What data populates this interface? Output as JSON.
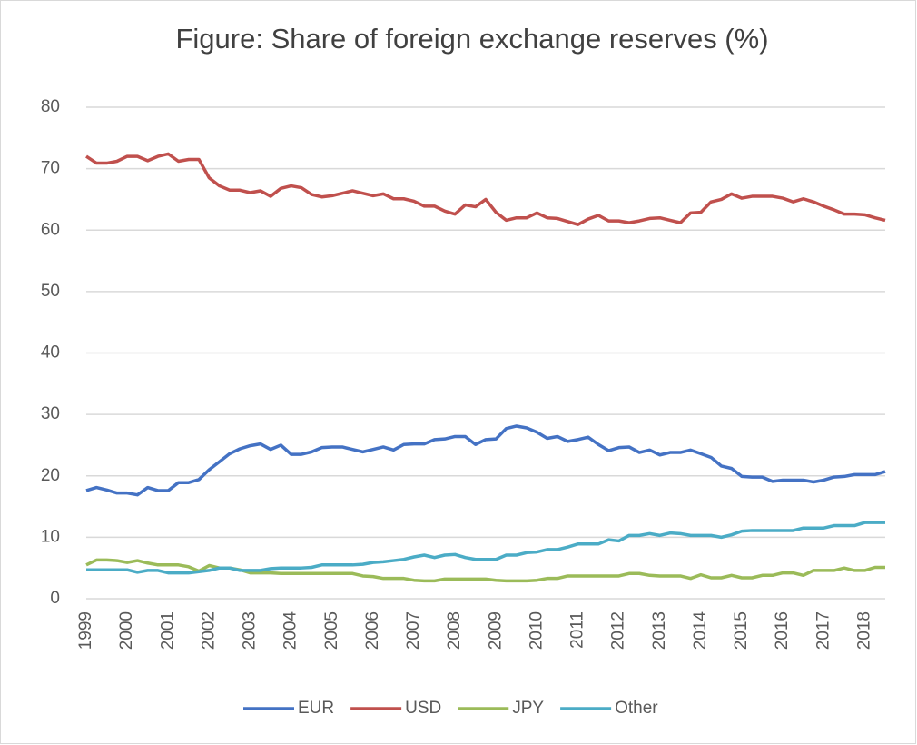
{
  "chart_data": {
    "type": "line",
    "title": "Figure: Share of foreign exchange reserves (%)",
    "categories": [
      "1999",
      null,
      null,
      null,
      "2000",
      null,
      null,
      null,
      "2001",
      null,
      null,
      null,
      "2002",
      null,
      null,
      null,
      "2003",
      null,
      null,
      null,
      "2004",
      null,
      null,
      null,
      "2005",
      null,
      null,
      null,
      "2006",
      null,
      null,
      null,
      "2007",
      null,
      null,
      null,
      "2008",
      null,
      null,
      null,
      "2009",
      null,
      null,
      null,
      "2010",
      null,
      null,
      null,
      "2011",
      null,
      null,
      null,
      "2012",
      null,
      null,
      null,
      "2013",
      null,
      null,
      null,
      "2014",
      null,
      null,
      null,
      "2015",
      null,
      null,
      null,
      "2016",
      null,
      null,
      null,
      "2017",
      null,
      null,
      null,
      "2018",
      null,
      null
    ],
    "series": [
      {
        "name": "EUR",
        "color": "#4472c4",
        "values": [
          17.6,
          18.1,
          17.7,
          17.2,
          17.2,
          16.9,
          18.1,
          17.6,
          17.6,
          18.9,
          18.9,
          19.4,
          21,
          22.3,
          23.6,
          24.4,
          24.9,
          25.2,
          24.3,
          25,
          23.5,
          23.5,
          23.9,
          24.6,
          24.7,
          24.7,
          24.3,
          23.9,
          24.3,
          24.7,
          24.2,
          25.1,
          25.2,
          25.2,
          25.9,
          26,
          26.4,
          26.4,
          25.1,
          25.9,
          26,
          27.7,
          28.1,
          27.8,
          27.1,
          26.1,
          26.4,
          25.6,
          25.9,
          26.3,
          25.1,
          24.1,
          24.6,
          24.7,
          23.8,
          24.2,
          23.4,
          23.8,
          23.8,
          24.2,
          23.6,
          23,
          21.6,
          21.2,
          19.9,
          19.8,
          19.8,
          19.1,
          19.3,
          19.3,
          19.3,
          19,
          19.3,
          19.8,
          19.9,
          20.2,
          20.2,
          20.2,
          20.7
        ]
      },
      {
        "name": "USD",
        "color": "#c0504d",
        "values": [
          72,
          70.9,
          70.9,
          71.2,
          72,
          72,
          71.3,
          72,
          72.4,
          71.2,
          71.5,
          71.5,
          68.5,
          67.2,
          66.5,
          66.5,
          66.1,
          66.4,
          65.5,
          66.8,
          67.2,
          66.9,
          65.8,
          65.4,
          65.6,
          66,
          66.4,
          66,
          65.6,
          65.9,
          65.1,
          65.1,
          64.7,
          63.9,
          63.9,
          63.1,
          62.6,
          64.1,
          63.8,
          65,
          62.9,
          61.6,
          62,
          62,
          62.8,
          62,
          61.9,
          61.4,
          60.9,
          61.8,
          62.4,
          61.5,
          61.5,
          61.2,
          61.5,
          61.9,
          62,
          61.6,
          61.2,
          62.8,
          62.9,
          64.6,
          65,
          65.9,
          65.2,
          65.5,
          65.5,
          65.5,
          65.2,
          64.6,
          65.1,
          64.6,
          63.9,
          63.3,
          62.6,
          62.6,
          62.5,
          62,
          61.6
        ]
      },
      {
        "name": "JPY",
        "color": "#9bbb59",
        "values": [
          5.5,
          6.3,
          6.3,
          6.2,
          5.9,
          6.2,
          5.8,
          5.5,
          5.5,
          5.5,
          5.2,
          4.5,
          5.4,
          5,
          5,
          4.7,
          4.2,
          4.2,
          4.2,
          4.1,
          4.1,
          4.1,
          4.1,
          4.1,
          4.1,
          4.1,
          4.1,
          3.7,
          3.6,
          3.3,
          3.3,
          3.3,
          3,
          2.9,
          2.9,
          3.2,
          3.2,
          3.2,
          3.2,
          3.2,
          3,
          2.9,
          2.9,
          2.9,
          3,
          3.3,
          3.3,
          3.7,
          3.7,
          3.7,
          3.7,
          3.7,
          3.7,
          4.1,
          4.1,
          3.8,
          3.7,
          3.7,
          3.7,
          3.3,
          3.9,
          3.4,
          3.4,
          3.8,
          3.4,
          3.4,
          3.8,
          3.8,
          4.2,
          4.2,
          3.8,
          4.6,
          4.6,
          4.6,
          5,
          4.6,
          4.6,
          5.1,
          5.1
        ]
      },
      {
        "name": "Other",
        "color": "#4bacc6",
        "values": [
          4.7,
          4.7,
          4.7,
          4.7,
          4.7,
          4.3,
          4.6,
          4.6,
          4.2,
          4.2,
          4.2,
          4.4,
          4.6,
          5,
          5,
          4.6,
          4.6,
          4.6,
          4.9,
          5,
          5,
          5,
          5.1,
          5.5,
          5.5,
          5.5,
          5.5,
          5.6,
          5.9,
          6,
          6.2,
          6.4,
          6.8,
          7.1,
          6.7,
          7.1,
          7.2,
          6.7,
          6.4,
          6.4,
          6.4,
          7.1,
          7.1,
          7.5,
          7.6,
          8,
          8,
          8.4,
          8.9,
          8.9,
          8.9,
          9.6,
          9.4,
          10.3,
          10.3,
          10.6,
          10.3,
          10.7,
          10.6,
          10.3,
          10.3,
          10.3,
          10,
          10.4,
          11,
          11.1,
          11.1,
          11.1,
          11.1,
          11.1,
          11.5,
          11.5,
          11.5,
          11.9,
          11.9,
          11.9,
          12.4,
          12.4,
          12.4
        ]
      }
    ],
    "ylim": [
      0,
      80
    ],
    "yticks": [
      0,
      10,
      20,
      30,
      40,
      50,
      60,
      70,
      80
    ],
    "grid": true,
    "legend": "bottom"
  }
}
